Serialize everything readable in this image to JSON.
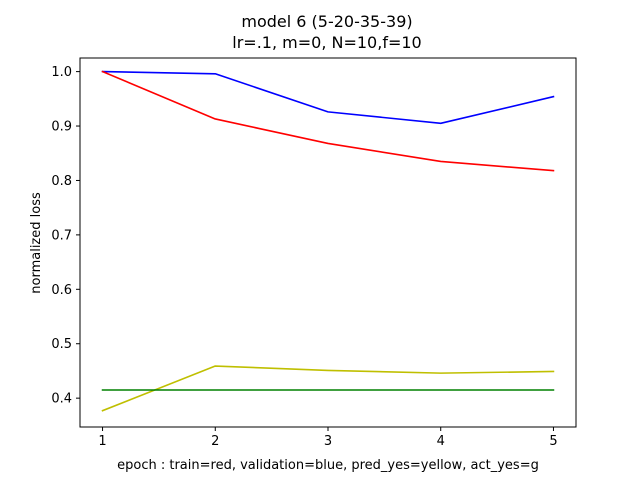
{
  "chart_data": {
    "type": "line",
    "title": "model 6 (5-20-35-39)",
    "subtitle": "lr=.1, m=0, N=10,f=10",
    "xlabel": "epoch : train=red, validation=blue, pred_yes=yellow, act_yes=g",
    "ylabel": "normalized loss",
    "x": [
      1,
      2,
      3,
      4,
      5
    ],
    "xticks": [
      1,
      2,
      3,
      4,
      5
    ],
    "xlim": [
      0.8,
      5.2
    ],
    "yticks": [
      0.4,
      0.5,
      0.6,
      0.7,
      0.8,
      0.9,
      1.0
    ],
    "ytick_labels": [
      "0.4",
      "0.5",
      "0.6",
      "0.7",
      "0.8",
      "0.9",
      "1.0"
    ],
    "ylim": [
      0.347,
      1.025
    ],
    "grid": false,
    "legend": "none",
    "series": [
      {
        "color": "#0000ff",
        "values": [
          1.0,
          0.996,
          0.926,
          0.905,
          0.954
        ]
      },
      {
        "color": "#ff0000",
        "values": [
          1.0,
          0.913,
          0.868,
          0.835,
          0.818
        ]
      },
      {
        "color": "#bfbf00",
        "values": [
          0.377,
          0.459,
          0.451,
          0.446,
          0.449
        ]
      },
      {
        "color": "#008000",
        "values": [
          0.415,
          0.415,
          0.415,
          0.415,
          0.415
        ]
      }
    ]
  }
}
